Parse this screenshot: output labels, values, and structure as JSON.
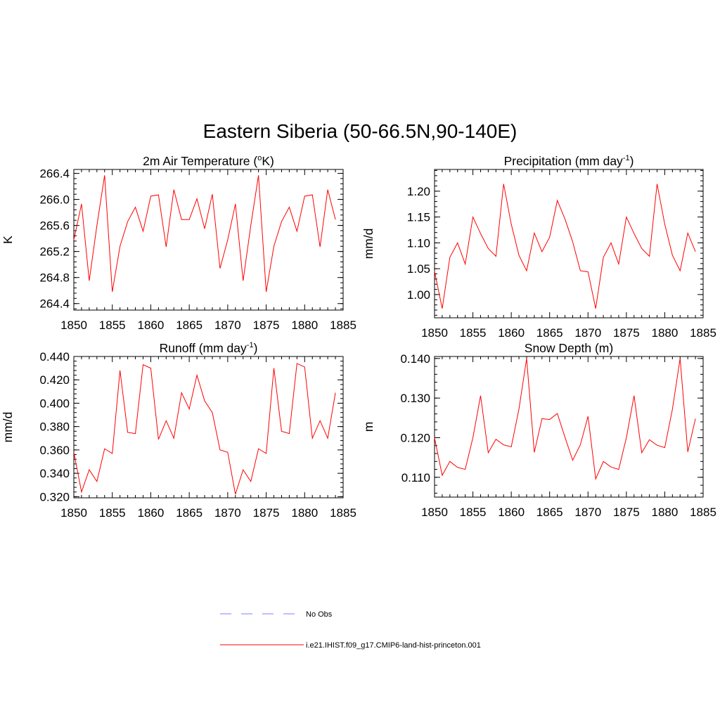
{
  "page": {
    "title": "Eastern Siberia (50-66.5N,90-140E)"
  },
  "legend": {
    "items": [
      {
        "label": "No Obs",
        "color": "#9999ff",
        "style": "dashed"
      },
      {
        "label": "i.e21.IHIST.f09_g17.CMIP6-land-hist-princeton.001",
        "color": "#ff0000",
        "style": "solid"
      }
    ]
  },
  "chart_data": [
    {
      "type": "line",
      "title_main": "2m Air Temperature (",
      "title_sup": "o",
      "title_end": "K)",
      "ylabel": "K",
      "xlim": [
        1850,
        1885
      ],
      "ylim": [
        264.3,
        266.46
      ],
      "yticks": [
        264.4,
        264.8,
        265.2,
        265.6,
        266.0,
        266.4
      ],
      "ytick_labels": [
        "264.4",
        "264.8",
        "265.2",
        "265.6",
        "266.0",
        "266.4"
      ],
      "xticks": [
        1850,
        1855,
        1860,
        1865,
        1870,
        1875,
        1880,
        1885
      ],
      "xtick_labels": [
        "1850",
        "1855",
        "1860",
        "1865",
        "1870",
        "1875",
        "1880",
        "1885"
      ],
      "x": [
        1850,
        1851,
        1852,
        1853,
        1854,
        1855,
        1856,
        1857,
        1858,
        1859,
        1860,
        1861,
        1862,
        1863,
        1864,
        1865,
        1866,
        1867,
        1868,
        1869,
        1870,
        1871,
        1872,
        1873,
        1874,
        1875,
        1876,
        1877,
        1878,
        1879,
        1880,
        1881,
        1882,
        1883,
        1884
      ],
      "series": [
        {
          "name": "i.e21.IHIST.f09_g17.CMIP6-land-hist-princeton.001",
          "color": "#ff0000",
          "values": [
            265.38,
            265.93,
            264.75,
            265.6,
            266.37,
            264.58,
            265.28,
            265.66,
            265.88,
            265.51,
            266.05,
            266.07,
            265.27,
            266.15,
            265.69,
            265.69,
            266.01,
            265.55,
            266.08,
            264.94,
            265.38,
            265.93,
            264.75,
            265.6,
            266.37,
            264.58,
            265.28,
            265.66,
            265.88,
            265.51,
            266.05,
            266.07,
            265.27,
            266.15,
            265.69
          ]
        }
      ]
    },
    {
      "type": "line",
      "title_main": "Precipitation (mm day",
      "title_sup": "-1",
      "title_end": ")",
      "ylabel": "mm/d",
      "xlim": [
        1850,
        1885
      ],
      "ylim": [
        0.955,
        1.242
      ],
      "yticks": [
        1.0,
        1.05,
        1.1,
        1.15,
        1.2
      ],
      "ytick_labels": [
        "1.00",
        "1.05",
        "1.10",
        "1.15",
        "1.20"
      ],
      "xticks": [
        1850,
        1855,
        1860,
        1865,
        1870,
        1875,
        1880,
        1885
      ],
      "xtick_labels": [
        "1850",
        "1855",
        "1860",
        "1865",
        "1870",
        "1875",
        "1880",
        "1885"
      ],
      "x": [
        1850,
        1851,
        1852,
        1853,
        1854,
        1855,
        1856,
        1857,
        1858,
        1859,
        1860,
        1861,
        1862,
        1863,
        1864,
        1865,
        1866,
        1867,
        1868,
        1869,
        1870,
        1871,
        1872,
        1873,
        1874,
        1875,
        1876,
        1877,
        1878,
        1879,
        1880,
        1881,
        1882,
        1883,
        1884
      ],
      "series": [
        {
          "name": "i.e21.IHIST.f09_g17.CMIP6-land-hist-princeton.001",
          "color": "#ff0000",
          "values": [
            1.045,
            0.973,
            1.072,
            1.1,
            1.059,
            1.15,
            1.118,
            1.089,
            1.074,
            1.214,
            1.136,
            1.076,
            1.046,
            1.119,
            1.083,
            1.111,
            1.182,
            1.146,
            1.102,
            1.046,
            1.044,
            0.973,
            1.072,
            1.1,
            1.059,
            1.15,
            1.118,
            1.089,
            1.074,
            1.214,
            1.136,
            1.076,
            1.046,
            1.119,
            1.083
          ]
        }
      ]
    },
    {
      "type": "line",
      "title_main": "Runoff (mm day",
      "title_sup": "-1",
      "title_end": ")",
      "ylabel": "mm/d",
      "xlim": [
        1850,
        1885
      ],
      "ylim": [
        0.319,
        0.44
      ],
      "yticks": [
        0.32,
        0.34,
        0.36,
        0.38,
        0.4,
        0.42,
        0.44
      ],
      "ytick_labels": [
        "0.320",
        "0.340",
        "0.360",
        "0.380",
        "0.400",
        "0.420",
        "0.440"
      ],
      "xticks": [
        1850,
        1855,
        1860,
        1865,
        1870,
        1875,
        1880,
        1885
      ],
      "xtick_labels": [
        "1850",
        "1855",
        "1860",
        "1865",
        "1870",
        "1875",
        "1880",
        "1885"
      ],
      "x": [
        1850,
        1851,
        1852,
        1853,
        1854,
        1855,
        1856,
        1857,
        1858,
        1859,
        1860,
        1861,
        1862,
        1863,
        1864,
        1865,
        1866,
        1867,
        1868,
        1869,
        1870,
        1871,
        1872,
        1873,
        1874,
        1875,
        1876,
        1877,
        1878,
        1879,
        1880,
        1881,
        1882,
        1883,
        1884
      ],
      "series": [
        {
          "name": "i.e21.IHIST.f09_g17.CMIP6-land-hist-princeton.001",
          "color": "#ff0000",
          "values": [
            0.358,
            0.324,
            0.343,
            0.333,
            0.361,
            0.357,
            0.428,
            0.375,
            0.374,
            0.433,
            0.43,
            0.369,
            0.385,
            0.37,
            0.409,
            0.395,
            0.424,
            0.402,
            0.392,
            0.36,
            0.358,
            0.322,
            0.343,
            0.333,
            0.361,
            0.357,
            0.43,
            0.376,
            0.374,
            0.434,
            0.431,
            0.37,
            0.385,
            0.37,
            0.409
          ]
        }
      ]
    },
    {
      "type": "line",
      "title_main": "Snow Depth (m)",
      "title_sup": "",
      "title_end": "",
      "ylabel": "m",
      "xlim": [
        1850,
        1885
      ],
      "ylim": [
        0.105,
        0.1405
      ],
      "yticks": [
        0.11,
        0.12,
        0.13,
        0.14
      ],
      "ytick_labels": [
        "0.110",
        "0.120",
        "0.130",
        "0.140"
      ],
      "xticks": [
        1850,
        1855,
        1860,
        1865,
        1870,
        1875,
        1880,
        1885
      ],
      "xtick_labels": [
        "1850",
        "1855",
        "1860",
        "1865",
        "1870",
        "1875",
        "1880",
        "1885"
      ],
      "x": [
        1850,
        1851,
        1852,
        1853,
        1854,
        1855,
        1856,
        1857,
        1858,
        1859,
        1860,
        1861,
        1862,
        1863,
        1864,
        1865,
        1866,
        1867,
        1868,
        1869,
        1870,
        1871,
        1872,
        1873,
        1874,
        1875,
        1876,
        1877,
        1878,
        1879,
        1880,
        1881,
        1882,
        1883,
        1884
      ],
      "series": [
        {
          "name": "i.e21.IHIST.f09_g17.CMIP6-land-hist-princeton.001",
          "color": "#ff0000",
          "values": [
            0.12,
            0.1105,
            0.114,
            0.1125,
            0.112,
            0.12,
            0.1306,
            0.1162,
            0.1196,
            0.1182,
            0.1177,
            0.1272,
            0.14,
            0.1163,
            0.1248,
            0.1246,
            0.1261,
            0.1201,
            0.1143,
            0.1182,
            0.1254,
            0.1096,
            0.114,
            0.1126,
            0.112,
            0.12,
            0.1306,
            0.1162,
            0.1195,
            0.1181,
            0.1175,
            0.1272,
            0.14,
            0.1164,
            0.1248
          ]
        }
      ]
    }
  ]
}
